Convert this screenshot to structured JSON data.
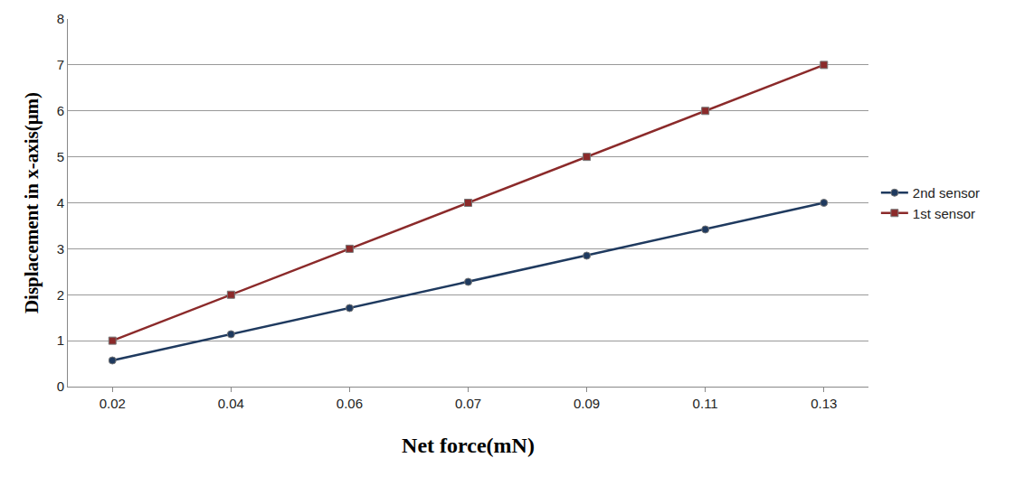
{
  "chart_data": {
    "type": "line",
    "x_label": "Net force(mN)",
    "y_label": "Displacement in x-axis(μm)",
    "categories": [
      "0.02",
      "0.04",
      "0.06",
      "0.07",
      "0.09",
      "0.11",
      "0.13"
    ],
    "series": [
      {
        "name": "2nd sensor",
        "color": "#1f3a5f",
        "marker": "circle",
        "line_style": "solid",
        "values": [
          0.57,
          1.14,
          1.71,
          2.28,
          2.85,
          3.42,
          4.0
        ]
      },
      {
        "name": "1st sensor",
        "color": "#8b2a2a",
        "marker": "square",
        "line_style": "solid",
        "values": [
          1,
          2,
          3,
          4,
          5,
          6,
          7
        ]
      }
    ],
    "ylim": [
      0,
      8
    ],
    "yticks": [
      0,
      1,
      2,
      3,
      4,
      5,
      6,
      7,
      8
    ],
    "grid": true,
    "legend": "right"
  }
}
